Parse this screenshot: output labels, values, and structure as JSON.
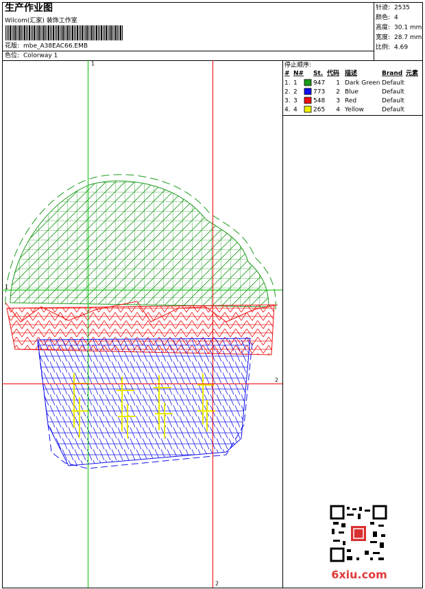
{
  "header": {
    "title": "生产作业图",
    "studio": "Wilcom(汇家) 装饰工作室",
    "design_label": "花版:",
    "design_file": "mbe_A38EAC66.EMB",
    "colorway_label": "色位:",
    "colorway": "Colorway 1"
  },
  "stats": [
    {
      "label": "针迹:",
      "value": "2535"
    },
    {
      "label": "颜色:",
      "value": "4"
    },
    {
      "label": "高度:",
      "value": "30.1 mm"
    },
    {
      "label": "宽度:",
      "value": "28.7 mm"
    },
    {
      "label": "比例:",
      "value": "4.69"
    }
  ],
  "stop_sequence": {
    "title": "停止顺序:",
    "columns": [
      "#",
      "N#",
      "St.",
      "代码",
      "描述",
      "Brand",
      "元素"
    ],
    "rows": [
      {
        "index": "1.",
        "needle": "1",
        "color": "#1a9a1a",
        "stitches": "947",
        "code": "1",
        "description": "Dark Green",
        "brand": "Default"
      },
      {
        "index": "2.",
        "needle": "2",
        "color": "#1010f0",
        "stitches": "773",
        "code": "2",
        "description": "Blue",
        "brand": "Default"
      },
      {
        "index": "3.",
        "needle": "3",
        "color": "#f01010",
        "stitches": "548",
        "code": "3",
        "description": "Red",
        "brand": "Default"
      },
      {
        "index": "4.",
        "needle": "4",
        "color": "#f0f000",
        "stitches": "265",
        "code": "4",
        "description": "Yellow",
        "brand": "Default"
      }
    ]
  },
  "axis_labels": {
    "top": "1",
    "left": "1",
    "right": "2",
    "bottom": "2"
  },
  "watermark": "6xiu.com"
}
